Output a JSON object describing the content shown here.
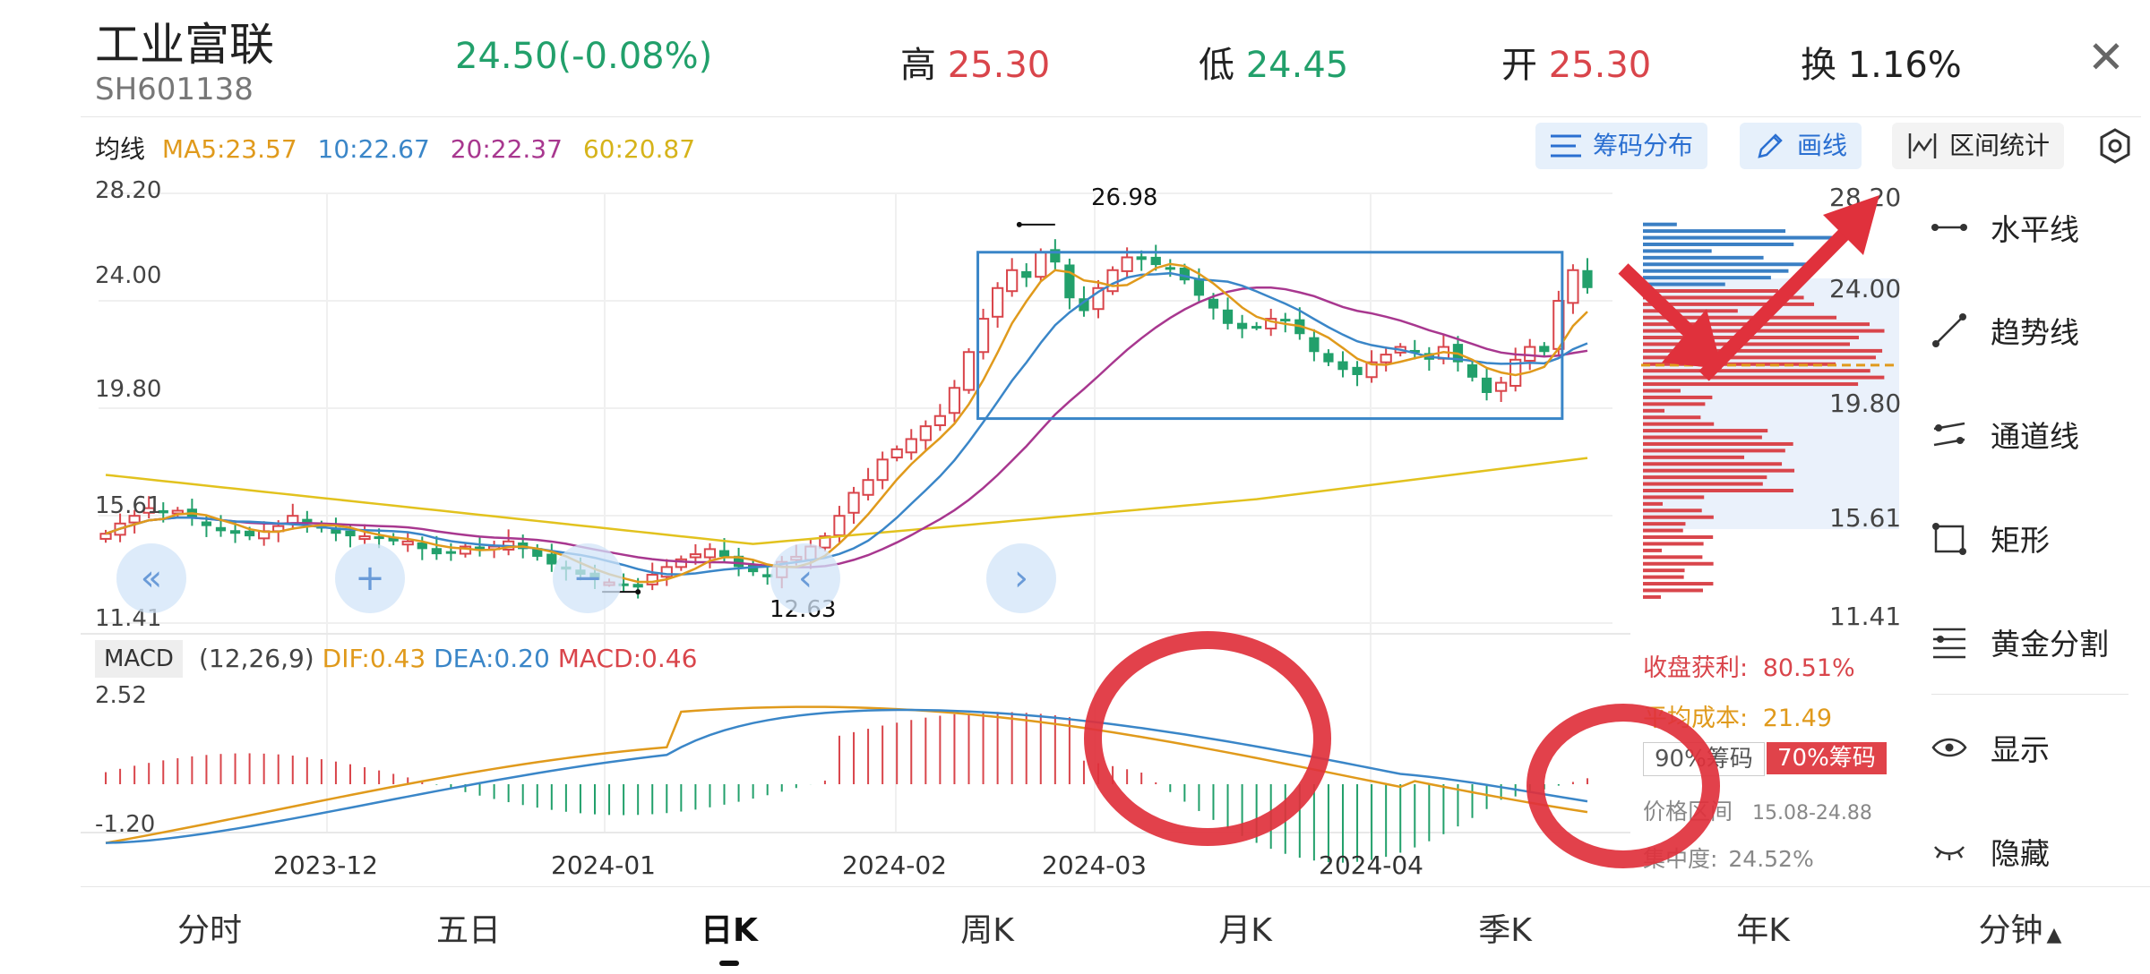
{
  "header": {
    "name": "工业富联",
    "code": "SH601138",
    "price": "24.50(-0.08%)",
    "high_label": "高",
    "high_value": "25.30",
    "low_label": "低",
    "low_value": "24.45",
    "open_label": "开",
    "open_value": "25.30",
    "turnover_label": "换",
    "turnover_value": "1.16%"
  },
  "ma_legend": {
    "label": "均线",
    "ma5": "MA5:23.57",
    "ma10": "10:22.67",
    "ma20": "20:22.37",
    "ma60": "60:20.87"
  },
  "toolbar": {
    "chips_label": "筹码分布",
    "draw_label": "画线",
    "range_label": "区间统计"
  },
  "colors": {
    "up": "#d9454b",
    "down": "#22a06b",
    "ma5": "#e09a1c",
    "ma10": "#3a86c8",
    "ma20": "#a8378f",
    "ma60": "#e2c21e",
    "box": "#3a86c8",
    "annotation": "#e0313c"
  },
  "price_axis": {
    "left_ticks": [
      "28.20",
      "24.00",
      "19.80",
      "15.61",
      "11.41"
    ],
    "right_ticks": [
      "28.20",
      "24.00",
      "19.80",
      "15.61",
      "11.41"
    ],
    "max_label": "26.98",
    "min_label": "12.63"
  },
  "macd": {
    "label": "MACD",
    "params": "(12,26,9)",
    "dif": "DIF:0.43",
    "dea": "DEA:0.20",
    "macd": "MACD:0.46",
    "top_tick": "2.52",
    "bottom_tick": "-1.20"
  },
  "x_axis": {
    "ticks": [
      "2023-12",
      "2024-01",
      "2024-02",
      "2024-03",
      "2024-04"
    ]
  },
  "chip_stats": {
    "profit_label": "收盘获利:",
    "profit_value": "80.51%",
    "avg_cost_label": "平均成本:",
    "avg_cost_value": "21.49",
    "btn90": "90%筹码",
    "btn70": "70%筹码",
    "range_label": "价格区间",
    "range_value": "15.08-24.88",
    "concentration_label": "集中度:",
    "concentration_value": "24.52%"
  },
  "side_tools": [
    {
      "label": "水平线",
      "icon": "horizontal-line-icon"
    },
    {
      "label": "趋势线",
      "icon": "trend-line-icon"
    },
    {
      "label": "通道线",
      "icon": "channel-line-icon"
    },
    {
      "label": "矩形",
      "icon": "rectangle-icon"
    },
    {
      "label": "黄金分割",
      "icon": "golden-ratio-icon"
    },
    {
      "label": "显示",
      "icon": "eye-icon"
    },
    {
      "label": "隐藏",
      "icon": "eye-closed-icon"
    }
  ],
  "bottom_tabs": [
    "分时",
    "五日",
    "日K",
    "周K",
    "月K",
    "季K",
    "年K",
    "分钟"
  ],
  "active_tab": "日K",
  "chart_data": {
    "type": "candlestick",
    "title": "",
    "x_ticks": [
      "2023-12",
      "2024-01",
      "2024-02",
      "2024-03",
      "2024-04"
    ],
    "y_ticks": [
      28.2,
      24.0,
      19.8,
      15.61,
      11.41
    ],
    "ylim": [
      11.41,
      28.2
    ],
    "highest": 26.98,
    "lowest": 12.63,
    "last_close": 24.5,
    "ma_series": [
      {
        "name": "MA5",
        "last": 23.57
      },
      {
        "name": "10",
        "last": 22.67
      },
      {
        "name": "20",
        "last": 22.37
      },
      {
        "name": "60",
        "last": 20.87
      }
    ],
    "close_series": [
      14.9,
      15.3,
      15.6,
      15.9,
      15.7,
      15.8,
      15.5,
      15.2,
      15.0,
      14.9,
      14.8,
      15.0,
      15.2,
      15.6,
      15.3,
      15.1,
      14.9,
      14.8,
      14.8,
      14.7,
      14.6,
      14.6,
      14.3,
      14.1,
      14.2,
      14.4,
      14.3,
      14.4,
      14.6,
      14.3,
      14.0,
      13.7,
      13.5,
      13.3,
      13.1,
      13.0,
      12.9,
      12.8,
      13.3,
      13.6,
      13.9,
      14.1,
      14.3,
      14.0,
      13.6,
      13.4,
      13.2,
      13.8,
      14.0,
      14.4,
      14.8,
      15.6,
      16.5,
      17.0,
      17.8,
      18.2,
      18.6,
      19.1,
      19.5,
      20.6,
      22.0,
      23.3,
      24.5,
      25.2,
      24.9,
      25.9,
      25.5,
      24.1,
      23.6,
      24.5,
      25.2,
      25.7,
      25.6,
      25.4,
      25.3,
      24.8,
      24.2,
      23.7,
      23.1,
      22.9,
      23.0,
      23.3,
      23.2,
      22.7,
      22.0,
      21.6,
      21.3,
      21.1,
      21.6,
      21.9,
      22.2,
      22.0,
      21.7,
      22.2,
      21.6,
      21.0,
      20.4,
      20.8,
      21.7,
      22.2,
      22.0,
      24.0,
      25.2,
      24.5
    ],
    "macd_series": {
      "dif_last": 0.43,
      "dea_last": 0.2,
      "macd_last": 0.46,
      "ylim": [
        -1.2,
        2.52
      ]
    },
    "chip_distribution": {
      "avg_cost": 21.49,
      "price_range": [
        15.08,
        24.88
      ]
    }
  }
}
